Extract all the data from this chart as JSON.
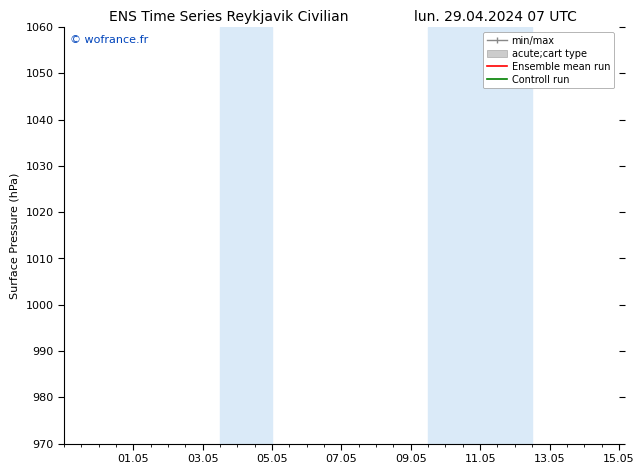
{
  "title_left": "ENS Time Series Reykjavik Civilian",
  "title_right": "lun. 29.04.2024 07 UTC",
  "ylabel": "Surface Pressure (hPa)",
  "ylim": [
    970,
    1060
  ],
  "yticks": [
    970,
    980,
    990,
    1000,
    1010,
    1020,
    1030,
    1040,
    1050,
    1060
  ],
  "xtick_labels": [
    "01.05",
    "03.05",
    "05.05",
    "07.05",
    "09.05",
    "11.05",
    "13.05",
    "15.05"
  ],
  "xtick_positions": [
    2,
    4,
    6,
    8,
    10,
    12,
    14,
    16
  ],
  "xlim": [
    0,
    16
  ],
  "shaded_regions": [
    {
      "x_start": 4.5,
      "x_end": 6.0
    },
    {
      "x_start": 10.5,
      "x_end": 13.5
    }
  ],
  "shaded_color": "#daeaf8",
  "watermark_text": "© wofrance.fr",
  "watermark_color": "#0044bb",
  "bg_color": "#ffffff",
  "title_fontsize": 10,
  "axis_label_fontsize": 8,
  "tick_fontsize": 8,
  "watermark_fontsize": 8
}
